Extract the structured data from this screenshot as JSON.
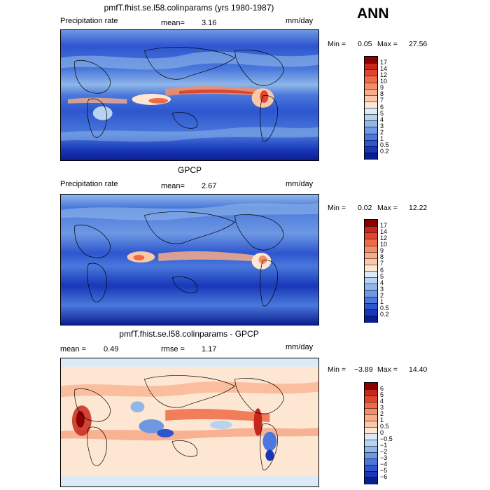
{
  "season": "ANN",
  "panels": [
    {
      "id": "model",
      "title": "pmfT.fhist.se.l58.colinparams (yrs 1980-1987)",
      "left_label": "Precipitation rate",
      "stat1_label": "mean=",
      "stat1_value": "3.16",
      "stat2_label": "",
      "stat2_value": "",
      "units": "mm/day",
      "minmax": {
        "min_label": "Min =",
        "min_value": "0.05",
        "max_label": "Max =",
        "max_value": "27.56"
      }
    },
    {
      "id": "obs",
      "title": "GPCP",
      "left_label": "Precipitation rate",
      "stat1_label": "mean=",
      "stat1_value": "2.67",
      "stat2_label": "",
      "stat2_value": "",
      "units": "mm/day",
      "minmax": {
        "min_label": "Min =",
        "min_value": "0.02",
        "max_label": "Max =",
        "max_value": "12.22"
      }
    },
    {
      "id": "diff",
      "title": "pmfT.fhist.se.l58.colinparams - GPCP",
      "left_label": "",
      "stat1_label": "mean =",
      "stat1_value": "0.49",
      "stat2_label": "rmse =",
      "stat2_value": "1.17",
      "units": "mm/day",
      "minmax": {
        "min_label": "Min =",
        "min_value": "−3.89",
        "max_label": "Max =",
        "max_value": "14.40"
      }
    }
  ],
  "chart_data": [
    {
      "type": "heatmap",
      "title": "pmfT.fhist.se.l58.colinparams (yrs 1980-1987)",
      "variable": "Precipitation rate",
      "units": "mm/day",
      "mean": 3.16,
      "min": 0.05,
      "max": 27.56,
      "colorbar_levels": [
        "17",
        "14",
        "12",
        "10",
        "9",
        "8",
        "7",
        "6",
        "5",
        "4",
        "3",
        "2",
        "1",
        "0.5",
        "0.2"
      ],
      "colorbar_colors": [
        "#8b0000",
        "#c8281b",
        "#e0452f",
        "#f06a47",
        "#f58d67",
        "#f8ac88",
        "#fbc8a7",
        "#fde6d2",
        "#dceaf8",
        "#b8d3f0",
        "#8fb7e8",
        "#6d98e2",
        "#4a78dc",
        "#2d56cf",
        "#1737b8",
        "#0b1e8f"
      ]
    },
    {
      "type": "heatmap",
      "title": "GPCP",
      "variable": "Precipitation rate",
      "units": "mm/day",
      "mean": 2.67,
      "min": 0.02,
      "max": 12.22,
      "colorbar_levels": [
        "17",
        "14",
        "12",
        "10",
        "9",
        "8",
        "7",
        "6",
        "5",
        "4",
        "3",
        "2",
        "1",
        "0.5",
        "0.2"
      ],
      "colorbar_colors": [
        "#8b0000",
        "#c8281b",
        "#e0452f",
        "#f06a47",
        "#f58d67",
        "#f8ac88",
        "#fbc8a7",
        "#fde6d2",
        "#dceaf8",
        "#b8d3f0",
        "#8fb7e8",
        "#6d98e2",
        "#4a78dc",
        "#2d56cf",
        "#1737b8",
        "#0b1e8f"
      ]
    },
    {
      "type": "heatmap",
      "title": "pmfT.fhist.se.l58.colinparams - GPCP",
      "units": "mm/day",
      "mean": 0.49,
      "rmse": 1.17,
      "min": -3.89,
      "max": 14.4,
      "colorbar_levels": [
        "6",
        "5",
        "4",
        "3",
        "2",
        "1",
        "0.5",
        "0",
        "−0.5",
        "−1",
        "−2",
        "−3",
        "−4",
        "−5",
        "−6"
      ],
      "colorbar_colors": [
        "#8b0000",
        "#c8281b",
        "#e0452f",
        "#f06a47",
        "#f58d67",
        "#f8ac88",
        "#fbc8a7",
        "#fde6d2",
        "#dceaf8",
        "#b8d3f0",
        "#8fb7e8",
        "#6d98e2",
        "#4a78dc",
        "#2d56cf",
        "#1737b8",
        "#0b1e8f"
      ]
    }
  ]
}
